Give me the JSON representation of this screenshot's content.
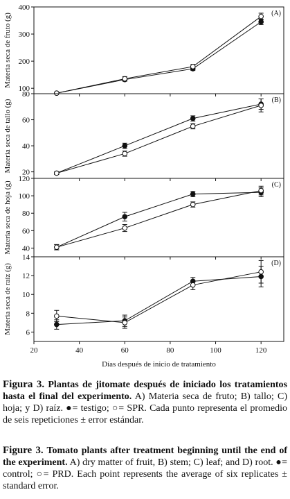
{
  "chart_data": [
    {
      "type": "line",
      "panel_label": "(A)",
      "ylabel": "Materia seca de fruto (g)",
      "ylim": [
        80,
        400
      ],
      "yticks": [
        80,
        100,
        200,
        300,
        400
      ],
      "x": [
        30,
        60,
        90,
        120
      ],
      "series": [
        {
          "name": "testigo",
          "marker": "filled",
          "values": [
            82,
            132,
            172,
            345
          ],
          "errors": [
            2,
            6,
            6,
            10
          ]
        },
        {
          "name": "SPR",
          "marker": "open",
          "values": [
            82,
            135,
            180,
            365
          ],
          "errors": [
            2,
            8,
            8,
            12
          ]
        }
      ]
    },
    {
      "type": "line",
      "panel_label": "(B)",
      "ylabel": "Materia seca de tallo (g)",
      "ylim": [
        15,
        80
      ],
      "yticks": [
        20,
        40,
        60
      ],
      "x": [
        30,
        60,
        90,
        120
      ],
      "series": [
        {
          "name": "testigo",
          "marker": "filled",
          "values": [
            19,
            40,
            61,
            72
          ],
          "errors": [
            1,
            2,
            2,
            4
          ]
        },
        {
          "name": "SPR",
          "marker": "open",
          "values": [
            19,
            34,
            55,
            71
          ],
          "errors": [
            1,
            2,
            2,
            5
          ]
        }
      ]
    },
    {
      "type": "line",
      "panel_label": "(C)",
      "ylabel": "Materia seca de hoja (g)",
      "ylim": [
        30,
        120
      ],
      "yticks": [
        40,
        60,
        80,
        100,
        120
      ],
      "x": [
        30,
        60,
        90,
        120
      ],
      "series": [
        {
          "name": "testigo",
          "marker": "filled",
          "values": [
            41,
            76,
            102,
            104
          ],
          "errors": [
            3,
            5,
            3,
            5
          ]
        },
        {
          "name": "SPR",
          "marker": "open",
          "values": [
            41,
            63,
            90,
            106
          ],
          "errors": [
            3,
            4,
            3,
            5
          ]
        }
      ]
    },
    {
      "type": "line",
      "panel_label": "(D)",
      "ylabel": "Materia seca de raíz (g)",
      "ylim": [
        5,
        14
      ],
      "yticks": [
        6,
        8,
        10,
        12,
        14
      ],
      "x": [
        30,
        60,
        90,
        120
      ],
      "series": [
        {
          "name": "testigo",
          "marker": "filled",
          "values": [
            6.8,
            7.2,
            11.4,
            11.9
          ],
          "errors": [
            0.5,
            0.6,
            0.4,
            1.1
          ]
        },
        {
          "name": "SPR",
          "marker": "open",
          "values": [
            7.7,
            7.0,
            11.0,
            12.4
          ],
          "errors": [
            0.6,
            0.6,
            0.5,
            1.2
          ]
        }
      ]
    }
  ],
  "x_axis": {
    "xlabel": "Días después de inicio de tratamiento",
    "xlim": [
      20,
      130
    ],
    "xticks": [
      20,
      40,
      60,
      80,
      100,
      120
    ]
  },
  "caption_es": {
    "label": "Figura 3.",
    "bold_text": "Plantas de jitomate después de iniciado los tratamientos hasta el final del experimento.",
    "text": "A) Materia seca de fruto; B) tallo; C) hoja; y D) raíz. ●= testigo; ○= SPR. Cada punto representa el promedio de seis repeticiones ± error estándar."
  },
  "caption_en": {
    "label": "Figure 3.",
    "bold_text": "Tomato plants after treatment beginning until the end of the experiment.",
    "text": "A) dry matter of fruit, B) stem; C) leaf; and D) root. ●= control; ○= PRD. Each point represents the average of six replicates ± standard error."
  },
  "colors": {
    "line": "#111111",
    "axis": "#111111"
  }
}
